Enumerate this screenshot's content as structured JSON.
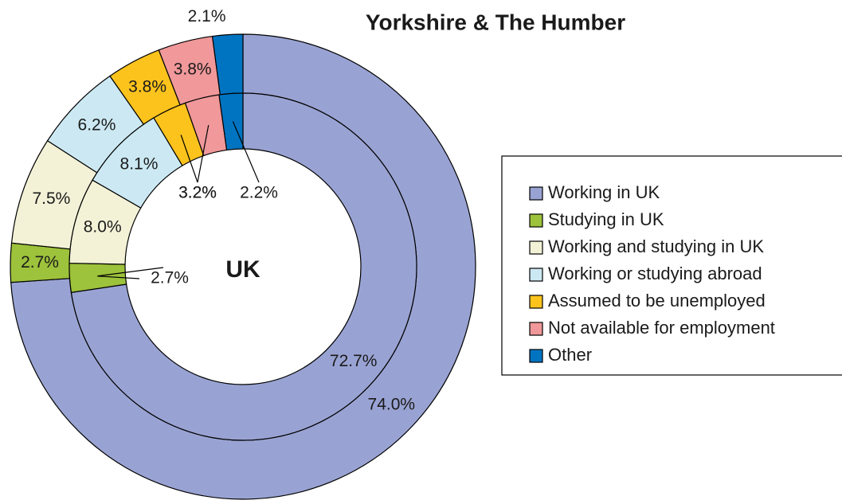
{
  "chart_data": {
    "type": "pie",
    "categories": [
      "Working in UK",
      "Studying in UK",
      "Working and studying in UK",
      "Working or studying abroad",
      "Assumed to be unemployed",
      "Not available for employment",
      "Other"
    ],
    "colors": [
      "#99a3d3",
      "#9dc23b",
      "#f3f2d7",
      "#cce9f3",
      "#fcc31d",
      "#f0989a",
      "#0074c1"
    ],
    "series": [
      {
        "name": "Yorkshire & The Humber",
        "values": [
          74.0,
          2.7,
          7.5,
          6.2,
          3.8,
          3.8,
          2.1
        ],
        "value_labels": [
          "74.0%",
          "2.7%",
          "7.5%",
          "6.2%",
          "3.8%",
          "3.8%",
          "2.1%"
        ]
      },
      {
        "name": "UK",
        "values": [
          72.7,
          2.7,
          8.0,
          8.1,
          3.2,
          3.2,
          2.2
        ],
        "value_labels": [
          "72.7%",
          "2.7%",
          "8.0%",
          "8.1%",
          "3.2%",
          "3.2%",
          "2.2%"
        ]
      }
    ]
  }
}
